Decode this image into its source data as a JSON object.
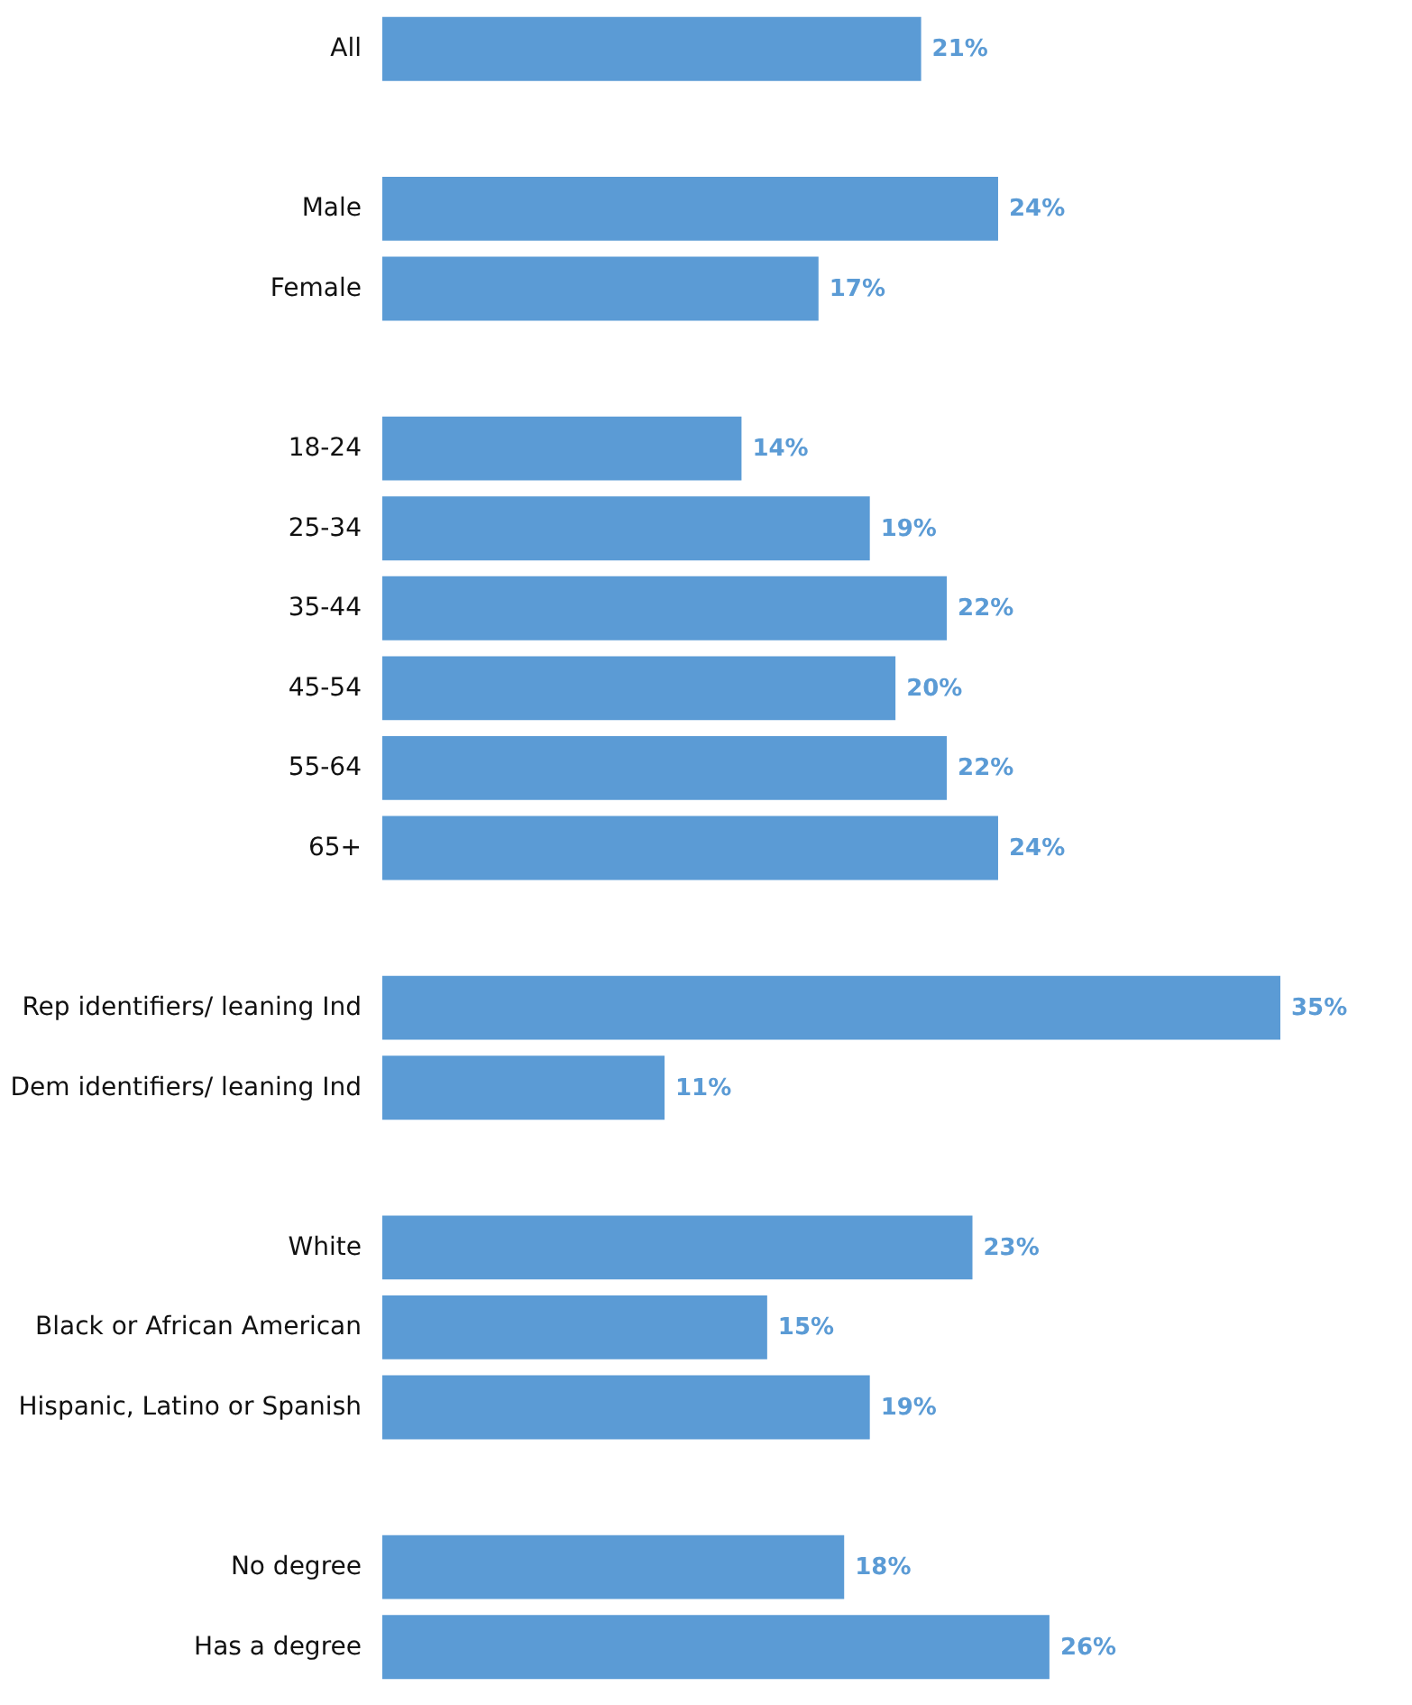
{
  "chart_data": {
    "type": "bar",
    "orientation": "horizontal",
    "categories": [
      "All",
      null,
      "Male",
      "Female",
      null,
      "18-24",
      "25-34",
      "35-44",
      "45-54",
      "55-64",
      "65+",
      null,
      "Rep identifiers/ leaning Ind",
      "Dem identifiers/ leaning Ind",
      null,
      "White",
      "Black or African American",
      "Hispanic, Latino or Spanish",
      null,
      "No degree",
      "Has a degree"
    ],
    "values": [
      21,
      null,
      24,
      17,
      null,
      14,
      19,
      22,
      20,
      22,
      24,
      null,
      35,
      11,
      null,
      23,
      15,
      19,
      null,
      18,
      26
    ],
    "value_labels": [
      "21%",
      null,
      "24%",
      "17%",
      null,
      "14%",
      "19%",
      "22%",
      "20%",
      "22%",
      "24%",
      null,
      "35%",
      "11%",
      null,
      "23%",
      "15%",
      "19%",
      null,
      "18%",
      "26%"
    ],
    "color": "#5b9bd5",
    "tick_labels": "y"
  }
}
